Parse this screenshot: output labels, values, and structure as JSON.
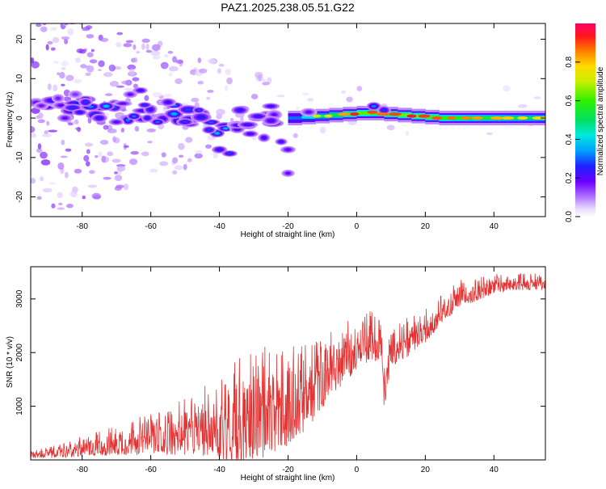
{
  "figure_title": "PAZ1.2025.238.05.51.G22",
  "chart_data": [
    {
      "type": "heatmap",
      "xlabel": "Height of straight line (km)",
      "ylabel": "Frequency (Hz)",
      "xlim": [
        -95,
        55
      ],
      "ylim": [
        -25,
        24
      ],
      "x_ticks": [
        -80,
        -60,
        -40,
        -20,
        0,
        20,
        40
      ],
      "y_ticks": [
        -20,
        -10,
        0,
        10,
        20
      ],
      "x_tick_labels": [
        "-80",
        "-60",
        "-40",
        "-20",
        "0",
        "20",
        "40"
      ],
      "y_tick_labels": [
        "-20",
        "-10",
        "0",
        "10",
        "20"
      ],
      "colorbar": {
        "label": "Normalized spectral amplitude",
        "range": [
          0,
          1
        ],
        "ticks": [
          0.0,
          0.2,
          0.4,
          0.6,
          0.8
        ],
        "tick_labels": [
          "0.0",
          "0.2",
          "0.4",
          "0.6",
          "0.8"
        ],
        "colormap": "rainbow (violet → blue → cyan → green → yellow → red → magenta)"
      },
      "ridge": [
        {
          "x": -92,
          "y": 3,
          "amp": 0.22
        },
        {
          "x": -88,
          "y": 3,
          "amp": 0.28
        },
        {
          "x": -84,
          "y": 2.5,
          "amp": 0.32
        },
        {
          "x": -80,
          "y": 2.5,
          "amp": 0.35
        },
        {
          "x": -76,
          "y": 2,
          "amp": 0.36
        },
        {
          "x": -72,
          "y": 2,
          "amp": 0.34
        },
        {
          "x": -68,
          "y": 1.5,
          "amp": 0.3
        },
        {
          "x": -64,
          "y": 2,
          "amp": 0.3
        },
        {
          "x": -60,
          "y": 1.5,
          "amp": 0.34
        },
        {
          "x": -56,
          "y": 1.5,
          "amp": 0.32
        },
        {
          "x": -52,
          "y": 1,
          "amp": 0.34
        },
        {
          "x": -48,
          "y": 0.5,
          "amp": 0.3
        },
        {
          "x": -44,
          "y": 0,
          "amp": 0.28
        },
        {
          "x": -40,
          "y": -2,
          "amp": 0.35
        },
        {
          "x": -36,
          "y": -1,
          "amp": 0.3
        },
        {
          "x": -32,
          "y": 0,
          "amp": 0.28
        },
        {
          "x": -28,
          "y": 0.5,
          "amp": 0.26
        },
        {
          "x": -24,
          "y": 1,
          "amp": 0.27
        },
        {
          "x": -20,
          "y": 0,
          "amp": 0.3
        },
        {
          "x": -16,
          "y": 0,
          "amp": 0.45
        },
        {
          "x": -12,
          "y": 0.5,
          "amp": 0.55
        },
        {
          "x": -8,
          "y": 0.5,
          "amp": 0.6
        },
        {
          "x": -4,
          "y": 1,
          "amp": 0.68
        },
        {
          "x": 0,
          "y": 1,
          "amp": 0.78
        },
        {
          "x": 4,
          "y": 1.5,
          "amp": 0.75
        },
        {
          "x": 8,
          "y": 1,
          "amp": 0.72
        },
        {
          "x": 12,
          "y": 1,
          "amp": 0.75
        },
        {
          "x": 16,
          "y": 0.5,
          "amp": 0.8
        },
        {
          "x": 20,
          "y": 0.5,
          "amp": 0.76
        },
        {
          "x": 24,
          "y": 0,
          "amp": 0.74
        },
        {
          "x": 28,
          "y": 0,
          "amp": 0.72
        },
        {
          "x": 32,
          "y": 0,
          "amp": 0.7
        },
        {
          "x": 36,
          "y": 0,
          "amp": 0.68
        },
        {
          "x": 40,
          "y": 0,
          "amp": 0.66
        },
        {
          "x": 44,
          "y": 0,
          "amp": 0.64
        },
        {
          "x": 48,
          "y": 0,
          "amp": 0.62
        },
        {
          "x": 52,
          "y": 0,
          "amp": 0.6
        },
        {
          "x": 55,
          "y": 0,
          "amp": 0.6
        }
      ],
      "blobs": [
        {
          "x": -87,
          "y": 5,
          "amp": 0.18
        },
        {
          "x": -85,
          "y": 0,
          "amp": 0.2
        },
        {
          "x": -82,
          "y": 6,
          "amp": 0.16
        },
        {
          "x": -79,
          "y": 4,
          "amp": 0.3
        },
        {
          "x": -75,
          "y": 0,
          "amp": 0.28
        },
        {
          "x": -73,
          "y": 3,
          "amp": 0.42
        },
        {
          "x": -70,
          "y": -1,
          "amp": 0.22
        },
        {
          "x": -66,
          "y": 6,
          "amp": 0.2
        },
        {
          "x": -63,
          "y": 7,
          "amp": 0.26
        },
        {
          "x": -61,
          "y": 0,
          "amp": 0.28
        },
        {
          "x": -58,
          "y": -1,
          "amp": 0.34
        },
        {
          "x": -55,
          "y": 4,
          "amp": 0.25
        },
        {
          "x": -50,
          "y": -1,
          "amp": 0.3
        },
        {
          "x": -46,
          "y": 2,
          "amp": 0.32
        },
        {
          "x": -43,
          "y": -3,
          "amp": 0.3
        },
        {
          "x": -40,
          "y": -8,
          "amp": 0.28
        },
        {
          "x": -37,
          "y": -9,
          "amp": 0.3
        },
        {
          "x": -34,
          "y": 2,
          "amp": 0.28
        },
        {
          "x": -31,
          "y": -4,
          "amp": 0.26
        },
        {
          "x": -27,
          "y": -5,
          "amp": 0.25
        },
        {
          "x": -25,
          "y": 3,
          "amp": 0.26
        },
        {
          "x": -22,
          "y": -6,
          "amp": 0.26
        },
        {
          "x": -20,
          "y": -8,
          "amp": 0.22
        },
        {
          "x": -20,
          "y": -14,
          "amp": 0.2
        },
        {
          "x": 5,
          "y": 3,
          "amp": 0.35
        },
        {
          "x": 8,
          "y": 2,
          "amp": 0.3
        },
        {
          "x": -14,
          "y": 1.5,
          "amp": 0.2
        }
      ]
    },
    {
      "type": "line",
      "xlabel": "Height of straight line (km)",
      "ylabel": "SNR (10 * v/v)",
      "xlim": [
        -95,
        55
      ],
      "ylim": [
        0,
        3600
      ],
      "x_ticks": [
        -80,
        -60,
        -40,
        -20,
        0,
        20,
        40
      ],
      "y_ticks": [
        1000,
        2000,
        3000
      ],
      "x_tick_labels": [
        "-80",
        "-60",
        "-40",
        "-20",
        "0",
        "20",
        "40"
      ],
      "y_tick_labels": [
        "1000",
        "2000",
        "3000"
      ],
      "line_color": "#e53232",
      "envelope": {
        "x": [
          -95,
          -90,
          -85,
          -80,
          -75,
          -70,
          -65,
          -60,
          -55,
          -50,
          -45,
          -40,
          -35,
          -30,
          -25,
          -20,
          -18,
          -15,
          -12,
          -10,
          -8,
          -5,
          -2,
          0,
          2,
          5,
          7,
          8,
          10,
          12,
          15,
          18,
          20,
          25,
          30,
          35,
          40,
          45,
          50,
          55
        ],
        "mean": [
          100,
          120,
          160,
          220,
          280,
          330,
          380,
          430,
          470,
          540,
          620,
          720,
          800,
          880,
          950,
          1050,
          1150,
          1250,
          1400,
          1550,
          1700,
          1850,
          2000,
          2100,
          2200,
          2250,
          2150,
          1300,
          2050,
          2100,
          2250,
          2350,
          2450,
          2800,
          3050,
          3150,
          3250,
          3300,
          3300,
          3300
        ],
        "spread": [
          70,
          90,
          130,
          180,
          220,
          280,
          320,
          380,
          420,
          500,
          600,
          800,
          1000,
          1000,
          1000,
          900,
          800,
          800,
          700,
          650,
          600,
          550,
          500,
          450,
          450,
          450,
          400,
          400,
          350,
          350,
          350,
          300,
          300,
          250,
          250,
          200,
          180,
          150,
          150,
          150
        ]
      }
    }
  ]
}
